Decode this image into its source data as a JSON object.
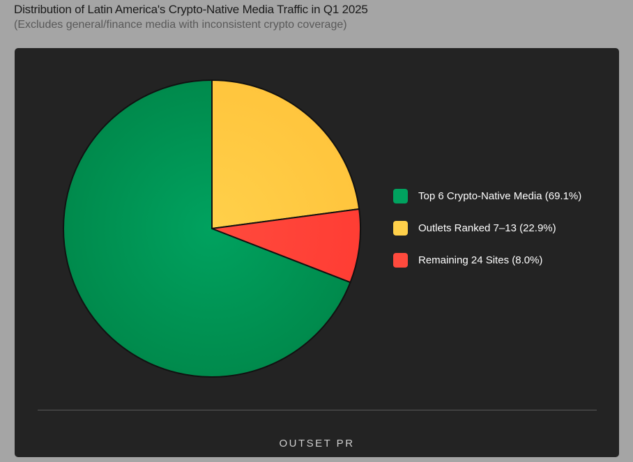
{
  "header": {
    "title": "Distribution of Latin America's Crypto-Native Media Traffic in Q1 2025",
    "subtitle": "(Excludes general/finance media with inconsistent crypto coverage)"
  },
  "chart_data": {
    "type": "pie",
    "title": "Distribution of Latin America's Crypto-Native Media Traffic in Q1 2025",
    "subtitle": "(Excludes general/finance media with inconsistent crypto coverage)",
    "slices": [
      {
        "name": "Top 6 Crypto-Native Media",
        "value": 69.1,
        "color": "#00a25f",
        "label": "Top 6 Crypto-Native Media (69.1%)"
      },
      {
        "name": "Outlets Ranked 7–13",
        "value": 22.9,
        "color": "#ffd04a",
        "label": "Outlets Ranked 7–13 (22.9%)"
      },
      {
        "name": "Remaining 24 Sites",
        "value": 8.0,
        "color": "#ff4a3d",
        "label": "Remaining 24 Sites (8.0%)"
      }
    ],
    "start": "12 o'clock",
    "direction": "clockwise, slices after the first",
    "legend_position": "right"
  },
  "footer": {
    "brand": "OUTSET PR"
  },
  "colors": {
    "page_background": "#a5a5a5",
    "card_background": "#232323",
    "slice_border": "#111111"
  }
}
